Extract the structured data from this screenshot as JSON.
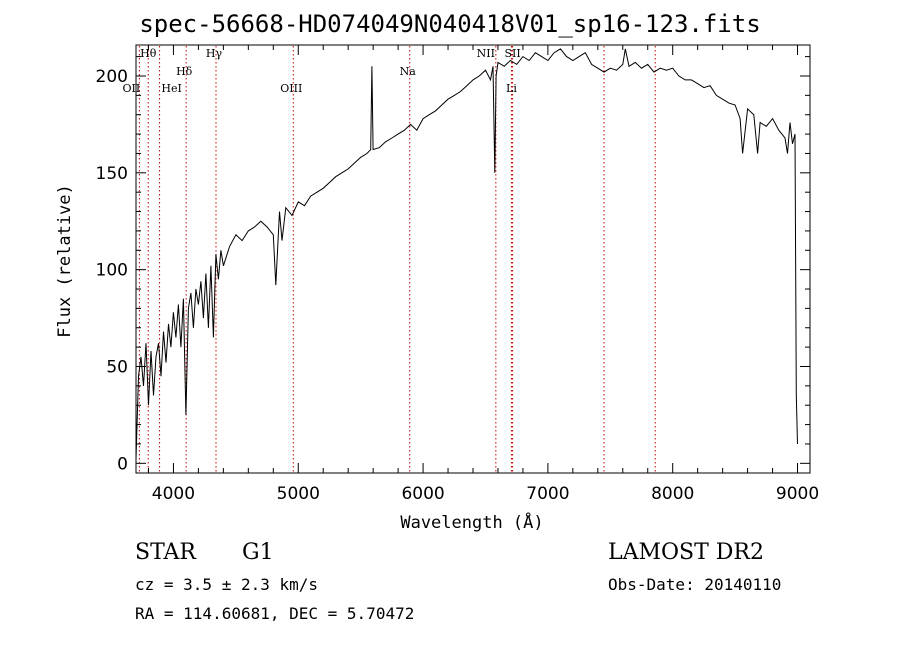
{
  "chart_data": {
    "type": "line",
    "title": "spec-56668-HD074049N040418V01_sp16-123.fits",
    "xlabel": "Wavelength (Å)",
    "ylabel": "Flux (relative)",
    "xlim": [
      3700,
      9100
    ],
    "ylim": [
      -5,
      216
    ],
    "xticks": [
      "4000",
      "5000",
      "6000",
      "7000",
      "8000",
      "9000"
    ],
    "yticks": [
      "0",
      "50",
      "100",
      "150",
      "200"
    ],
    "grid": false,
    "line_markers": [
      {
        "label": "Hθ",
        "x": 3798
      },
      {
        "label": "OII",
        "x": 3727
      },
      {
        "label": "HeI",
        "x": 3889
      },
      {
        "label": "Hδ",
        "x": 4102
      },
      {
        "label": "Hγ",
        "x": 4341
      },
      {
        "label": "OIII",
        "x": 4960
      },
      {
        "label": "Na",
        "x": 5893
      },
      {
        "label": "NII",
        "x": 6583
      },
      {
        "label": "SII",
        "x": 6717
      },
      {
        "label": "Li",
        "x": 6708
      },
      {
        "label": "",
        "x": 7450
      },
      {
        "label": "",
        "x": 7860
      }
    ],
    "series": [
      {
        "x": [
          3700,
          3720,
          3740,
          3760,
          3780,
          3800,
          3820,
          3840,
          3860,
          3880,
          3900,
          3920,
          3940,
          3960,
          3980,
          4000,
          4020,
          4040,
          4060,
          4080,
          4100,
          4120,
          4140,
          4160,
          4180,
          4200,
          4220,
          4240,
          4260,
          4280,
          4300,
          4320,
          4340,
          4360,
          4380,
          4400,
          4450,
          4500,
          4550,
          4600,
          4650,
          4700,
          4750,
          4800,
          4820,
          4850,
          4870,
          4900,
          4950,
          5000,
          5050,
          5100,
          5150,
          5200,
          5250,
          5300,
          5350,
          5400,
          5450,
          5500,
          5550,
          5580,
          5590,
          5600,
          5650,
          5700,
          5750,
          5800,
          5850,
          5900,
          5950,
          6000,
          6050,
          6100,
          6150,
          6200,
          6250,
          6300,
          6350,
          6400,
          6450,
          6500,
          6540,
          6560,
          6575,
          6585,
          6600,
          6650,
          6700,
          6750,
          6800,
          6850,
          6900,
          6950,
          7000,
          7050,
          7100,
          7150,
          7200,
          7250,
          7300,
          7350,
          7400,
          7450,
          7500,
          7550,
          7600,
          7620,
          7650,
          7700,
          7750,
          7800,
          7850,
          7900,
          7950,
          8000,
          8050,
          8100,
          8150,
          8200,
          8250,
          8300,
          8350,
          8400,
          8450,
          8500,
          8540,
          8560,
          8600,
          8650,
          8680,
          8700,
          8750,
          8800,
          8850,
          8900,
          8920,
          8940,
          8960,
          8980,
          8990,
          9000
        ],
        "y": [
          2,
          45,
          55,
          40,
          62,
          30,
          58,
          35,
          55,
          62,
          45,
          68,
          52,
          72,
          60,
          78,
          65,
          82,
          60,
          85,
          25,
          80,
          88,
          70,
          90,
          82,
          94,
          75,
          98,
          70,
          102,
          65,
          108,
          95,
          110,
          102,
          112,
          118,
          115,
          120,
          122,
          125,
          122,
          118,
          92,
          130,
          115,
          132,
          128,
          135,
          133,
          138,
          140,
          142,
          145,
          148,
          150,
          152,
          155,
          158,
          160,
          162,
          205,
          162,
          163,
          166,
          168,
          170,
          172,
          175,
          172,
          178,
          180,
          182,
          185,
          188,
          190,
          192,
          195,
          198,
          200,
          203,
          198,
          205,
          150,
          200,
          207,
          205,
          208,
          206,
          210,
          208,
          212,
          210,
          208,
          212,
          214,
          210,
          208,
          210,
          212,
          206,
          204,
          202,
          204,
          203,
          206,
          214,
          205,
          207,
          204,
          206,
          202,
          204,
          203,
          204,
          200,
          198,
          198,
          196,
          194,
          195,
          190,
          188,
          186,
          185,
          178,
          160,
          183,
          180,
          160,
          176,
          174,
          178,
          172,
          168,
          160,
          176,
          165,
          170,
          35,
          10
        ]
      }
    ]
  },
  "info": {
    "class": "STAR",
    "subclass": "G1",
    "survey": "LAMOST DR2",
    "cz": "cz = 3.5 ± 2.3 km/s",
    "obs_date": "Obs-Date: 20140110",
    "coords": "RA = 114.60681, DEC =   5.70472"
  },
  "colors": {
    "spectrum": "#000000",
    "marker": "#cc0000",
    "axes": "#000000"
  }
}
